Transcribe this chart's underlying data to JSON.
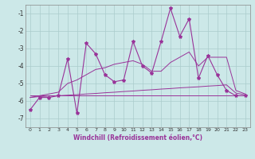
{
  "x": [
    0,
    1,
    2,
    3,
    4,
    5,
    6,
    7,
    8,
    9,
    10,
    11,
    12,
    13,
    14,
    15,
    16,
    17,
    18,
    19,
    20,
    21,
    22,
    23
  ],
  "line_jagged": [
    -6.5,
    -5.8,
    -5.8,
    -5.7,
    -3.6,
    -6.7,
    -2.7,
    -3.3,
    -4.5,
    -4.9,
    -4.8,
    -2.6,
    -4.0,
    -4.4,
    -2.6,
    -0.7,
    -2.3,
    -1.3,
    -4.7,
    -3.4,
    -4.5,
    -5.4,
    -5.7,
    -5.7
  ],
  "line_upper": [
    -5.8,
    -5.7,
    -5.6,
    -5.5,
    -5.0,
    -4.8,
    -4.5,
    -4.2,
    -4.1,
    -3.9,
    -3.8,
    -3.7,
    -3.9,
    -4.3,
    -4.3,
    -3.8,
    -3.5,
    -3.2,
    -4.0,
    -3.5,
    -3.5,
    -3.5,
    -5.4,
    -5.6
  ],
  "line_lower": [
    -5.8,
    -5.75,
    -5.72,
    -5.7,
    -5.67,
    -5.64,
    -5.6,
    -5.57,
    -5.53,
    -5.5,
    -5.46,
    -5.43,
    -5.39,
    -5.36,
    -5.32,
    -5.29,
    -5.25,
    -5.22,
    -5.19,
    -5.15,
    -5.12,
    -5.08,
    -5.55,
    -5.65
  ],
  "line_flat": [
    -5.7,
    -5.7,
    -5.7,
    -5.7,
    -5.7,
    -5.7,
    -5.7,
    -5.7,
    -5.7,
    -5.7,
    -5.7,
    -5.7,
    -5.7,
    -5.7,
    -5.7,
    -5.7,
    -5.7,
    -5.7,
    -5.7,
    -5.7,
    -5.7,
    -5.7,
    -5.7,
    -5.7
  ],
  "ylim": [
    -7.5,
    -0.5
  ],
  "xlim": [
    -0.5,
    23.5
  ],
  "yticks": [
    -7,
    -6,
    -5,
    -4,
    -3,
    -2,
    -1
  ],
  "color": "#993399",
  "bg_color": "#cce8e8",
  "grid_color": "#aacccc",
  "xlabel": "Windchill (Refroidissement éolien,°C)"
}
